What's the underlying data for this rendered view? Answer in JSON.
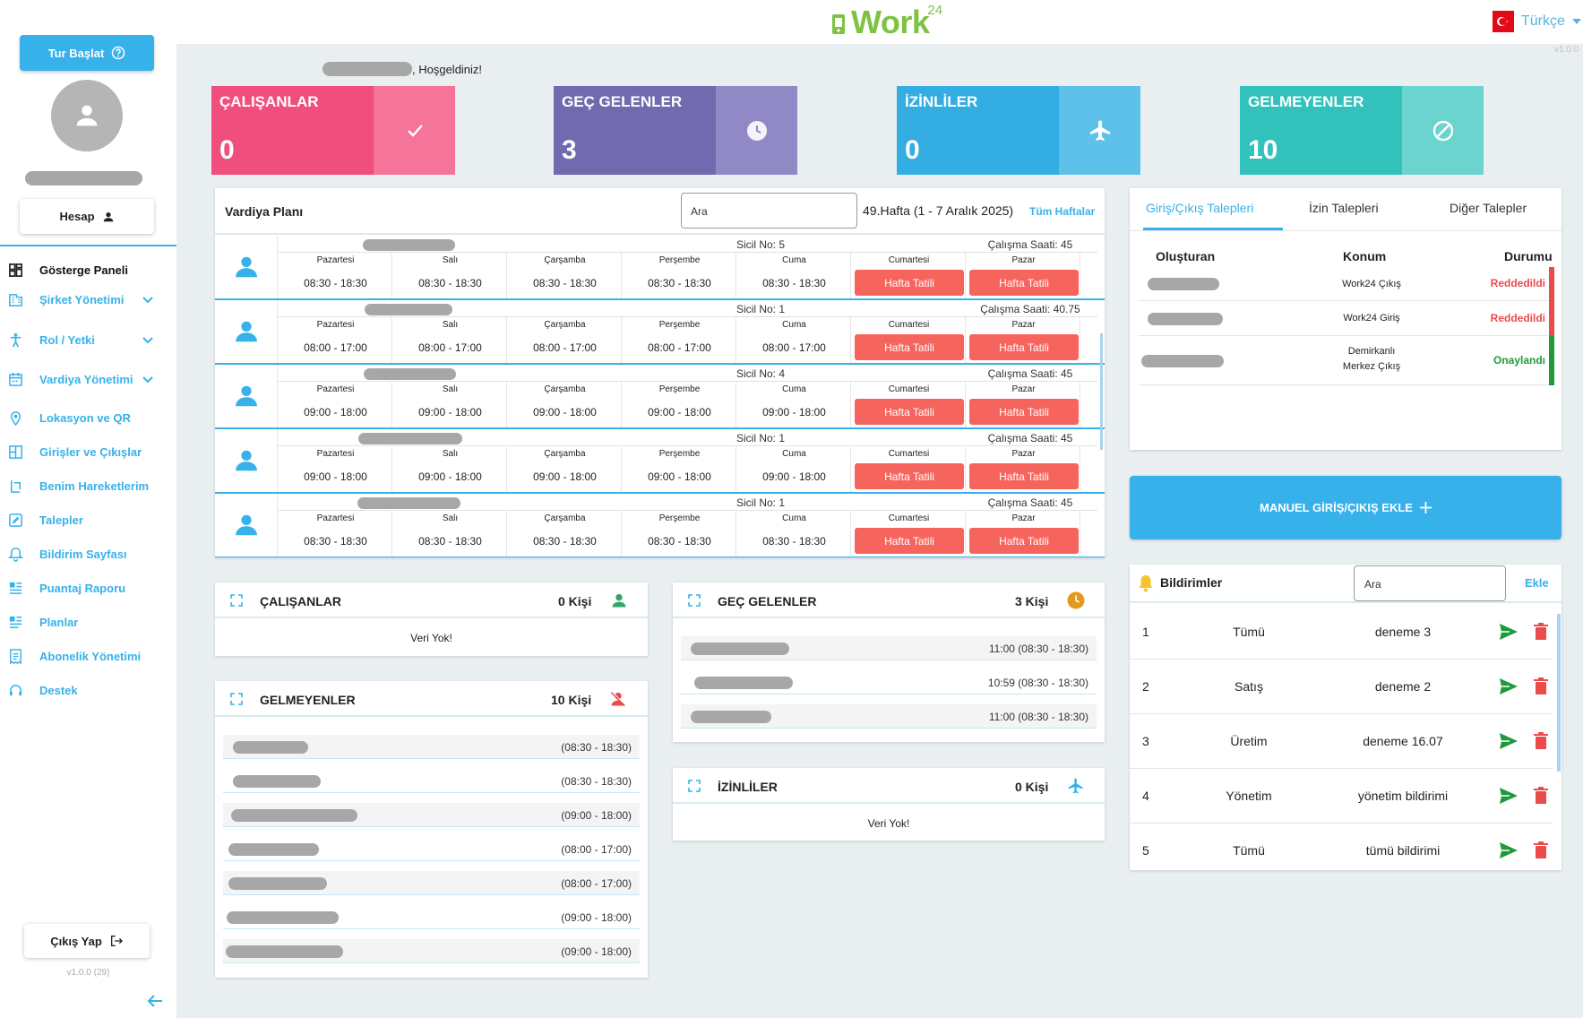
{
  "app": {
    "logo_text": "Work",
    "logo_sup": "24",
    "language": "Türkçe",
    "version_top": "v1.0.0"
  },
  "sidebar": {
    "tour_label": "Tur Başlat",
    "account_label": "Hesap",
    "items": [
      {
        "label": "Gösterge Paneli",
        "icon": "dashboard-icon"
      },
      {
        "label": "Şirket Yönetimi",
        "icon": "building-icon"
      },
      {
        "label": "Rol / Yetki",
        "icon": "person-icon"
      },
      {
        "label": "Vardiya Yönetimi",
        "icon": "calendar-icon"
      },
      {
        "label": "Lokasyon ve QR",
        "icon": "location-icon"
      },
      {
        "label": "Girişler ve Çıkışlar",
        "icon": "door-icon"
      },
      {
        "label": "Benim Hareketlerim",
        "icon": "movement-icon"
      },
      {
        "label": "Talepler",
        "icon": "edit-icon"
      },
      {
        "label": "Bildirim Sayfası",
        "icon": "bell-icon"
      },
      {
        "label": "Puantaj Raporu",
        "icon": "report-icon"
      },
      {
        "label": "Planlar",
        "icon": "plan-icon"
      },
      {
        "label": "Abonelik Yönetimi",
        "icon": "receipt-icon"
      },
      {
        "label": "Destek",
        "icon": "support-icon"
      }
    ],
    "logout_label": "Çıkış Yap",
    "version": "v1.0.0 (29)"
  },
  "welcome": ", Hoşgeldiniz!",
  "stats": [
    {
      "title": "ÇALIŞANLAR",
      "value": "0",
      "color": "#f04e7d",
      "side_color": "#f47599"
    },
    {
      "title": "GEÇ GELENLER",
      "value": "3",
      "color": "#716aae",
      "side_color": "#9189c6"
    },
    {
      "title": "İZİNLİLER",
      "value": "0",
      "color": "#33ade2",
      "side_color": "#5ec1ea"
    },
    {
      "title": "GELMEYENLER",
      "value": "10",
      "color": "#33c1bb",
      "side_color": "#6bd4cf"
    }
  ],
  "shift_plan": {
    "title": "Vardiya Planı",
    "search_placeholder": "Ara",
    "week": "49.Hafta (1 - 7 Aralık 2025)",
    "all_weeks": "Tüm Haftalar",
    "days": [
      "Pazartesi",
      "Salı",
      "Çarşamba",
      "Perşembe",
      "Cuma",
      "Cumartesi",
      "Pazar"
    ],
    "holiday_label": "Hafta Tatili",
    "rows": [
      {
        "sicil": "Sicil No: 5",
        "hours": "Çalışma Saati: 45",
        "times": [
          "08:30 - 18:30",
          "08:30 - 18:30",
          "08:30 - 18:30",
          "08:30 - 18:30",
          "08:30 - 18:30"
        ]
      },
      {
        "sicil": "Sicil No: 1",
        "hours": "Çalışma Saati: 40.75",
        "times": [
          "08:00 - 17:00",
          "08:00 - 17:00",
          "08:00 - 17:00",
          "08:00 - 17:00",
          "08:00 - 17:00"
        ]
      },
      {
        "sicil": "Sicil No: 4",
        "hours": "Çalışma Saati: 45",
        "times": [
          "09:00 - 18:00",
          "09:00 - 18:00",
          "09:00 - 18:00",
          "09:00 - 18:00",
          "09:00 - 18:00"
        ]
      },
      {
        "sicil": "Sicil No: 1",
        "hours": "Çalışma Saati: 45",
        "times": [
          "09:00 - 18:00",
          "09:00 - 18:00",
          "09:00 - 18:00",
          "09:00 - 18:00",
          "09:00 - 18:00"
        ]
      },
      {
        "sicil": "Sicil No: 1",
        "hours": "Çalışma Saati: 45",
        "times": [
          "08:30 - 18:30",
          "08:30 - 18:30",
          "08:30 - 18:30",
          "08:30 - 18:30",
          "08:30 - 18:30"
        ]
      }
    ]
  },
  "requests": {
    "tabs": [
      "Giriş/Çıkış Talepleri",
      "İzin Talepleri",
      "Diğer Talepler"
    ],
    "headers": [
      "Oluşturan",
      "Konum",
      "Durumu"
    ],
    "rows": [
      {
        "location": "Work24 Çıkış",
        "status": "Reddedildi",
        "color": "#ea4b4b"
      },
      {
        "location": "Work24 Giriş",
        "status": "Reddedildi",
        "color": "#ea4b4b"
      },
      {
        "location": "Demirkanlı Merkez Çıkış",
        "status": "Onaylandı",
        "color": "#1e9a3a"
      }
    ]
  },
  "manual_button": "MANUEL GİRİŞ/ÇIKIŞ EKLE",
  "notifications": {
    "title": "Bildirimler",
    "search_placeholder": "Ara",
    "add_label": "Ekle",
    "rows": [
      {
        "id": "1",
        "target": "Tümü",
        "message": "deneme 3"
      },
      {
        "id": "2",
        "target": "Satış",
        "message": "deneme 2"
      },
      {
        "id": "3",
        "target": "Üretim",
        "message": "deneme 16.07"
      },
      {
        "id": "4",
        "target": "Yönetim",
        "message": "yönetim bildirimi"
      },
      {
        "id": "5",
        "target": "Tümü",
        "message": "tümü bildirimi"
      }
    ]
  },
  "panels": {
    "employees": {
      "title": "ÇALIŞANLAR",
      "count": "0 Kişi",
      "empty": "Veri Yok!"
    },
    "late": {
      "title": "GEÇ GELENLER",
      "count": "3 Kişi",
      "times": [
        "11:00 (08:30 - 18:30)",
        "10:59 (08:30 - 18:30)",
        "11:00 (08:30 - 18:30)"
      ]
    },
    "absent": {
      "title": "GELMEYENLER",
      "count": "10 Kişi",
      "times": [
        "(08:30 - 18:30)",
        "(08:30 - 18:30)",
        "(09:00 - 18:00)",
        "(08:00 - 17:00)",
        "(08:00 - 17:00)",
        "(09:00 - 18:00)",
        "(09:00 - 18:00)"
      ]
    },
    "leave": {
      "title": "İZİNLİLER",
      "count": "0 Kişi",
      "empty": "Veri Yok!"
    }
  }
}
